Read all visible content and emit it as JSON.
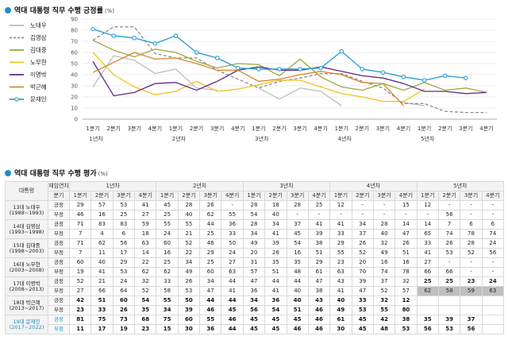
{
  "chart_section_title": "역대 대통령 직무 수행 긍정률",
  "chart_section_unit": "(%)",
  "table_section_title": "역대 대통령 직무 수행 평가",
  "table_section_unit": "(%)",
  "chart_data": {
    "type": "line",
    "title": "역대 대통령 직무 수행 긍정률",
    "ylim": [
      0,
      90
    ],
    "yticks": [
      0,
      10,
      20,
      30,
      40,
      50,
      60,
      70,
      80,
      90
    ],
    "quarter_labels": [
      "1분기",
      "2분기",
      "3분기",
      "4분기",
      "1분기",
      "2분기",
      "3분기",
      "4분기",
      "1분기",
      "2분기",
      "3분기",
      "4분기",
      "1분기",
      "2분기",
      "3분기",
      "4분기",
      "1분기",
      "2분기",
      "3분기",
      "4분기"
    ],
    "year_labels": [
      "1년차",
      "2년차",
      "3년차",
      "4년차",
      "5년차"
    ],
    "grid": true,
    "legend_placement": "left",
    "series": [
      {
        "name": "노태우",
        "color": "#bdbdbd",
        "dash": false,
        "values": [
          29,
          57,
          53,
          41,
          45,
          28,
          26,
          null,
          28,
          18,
          28,
          25,
          12,
          null,
          null,
          15,
          12,
          null,
          null,
          null
        ]
      },
      {
        "name": "김영삼",
        "color": "#8c8c8c",
        "dash": true,
        "values": [
          71,
          83,
          83,
          59,
          55,
          55,
          44,
          36,
          28,
          34,
          37,
          41,
          41,
          34,
          28,
          14,
          14,
          7,
          6,
          6
        ]
      },
      {
        "name": "김대중",
        "color": "#9aa83a",
        "dash": false,
        "values": [
          71,
          62,
          56,
          63,
          60,
          52,
          46,
          50,
          49,
          39,
          54,
          38,
          29,
          26,
          32,
          26,
          33,
          26,
          28,
          24
        ]
      },
      {
        "name": "노무현",
        "color": "#f2c31b",
        "dash": false,
        "values": [
          60,
          40,
          29,
          22,
          25,
          34,
          25,
          27,
          31,
          35,
          35,
          29,
          23,
          20,
          16,
          16,
          27,
          null,
          null,
          null
        ]
      },
      {
        "name": "이명박",
        "color": "#5d2a87",
        "dash": false,
        "values": [
          52,
          21,
          24,
          32,
          33,
          26,
          34,
          44,
          47,
          44,
          44,
          47,
          43,
          39,
          37,
          32,
          25,
          25,
          23,
          24
        ]
      },
      {
        "name": "박근혜",
        "color": "#d9862a",
        "dash": false,
        "values": [
          42,
          51,
          60,
          54,
          55,
          50,
          44,
          44,
          34,
          36,
          40,
          43,
          40,
          33,
          32,
          12,
          null,
          null,
          null,
          null
        ]
      },
      {
        "name": "문재인",
        "color": "#2e9fd6",
        "dash": false,
        "markers": true,
        "values": [
          81,
          75,
          73,
          68,
          75,
          60,
          55,
          46,
          45,
          45,
          45,
          46,
          61,
          45,
          42,
          38,
          35,
          39,
          37,
          null
        ]
      }
    ]
  },
  "table": {
    "head_president": "대통령",
    "head_term": "재임연차",
    "head_quarter": "분기",
    "years": [
      "1년차",
      "2년차",
      "3년차",
      "4년차",
      "5년차"
    ],
    "quarters": [
      "1분기",
      "2분기",
      "3분기",
      "4분기"
    ],
    "label_pos": "긍정",
    "label_neg": "부정",
    "rows": [
      {
        "name": "13대 노태우",
        "term": "(1988~1993)",
        "pos": [
          "29",
          "57",
          "53",
          "41",
          "45",
          "28",
          "26",
          "-",
          "28",
          "18",
          "28",
          "25",
          "12",
          "-",
          "-",
          "15",
          "12",
          "-",
          "-",
          "-"
        ],
        "neg": [
          "46",
          "16",
          "25",
          "27",
          "25",
          "40",
          "62",
          "55",
          "54",
          "40",
          "-",
          "-",
          "-",
          "-",
          "-",
          "-",
          "-",
          "56",
          "-",
          "-"
        ]
      },
      {
        "name": "14대 김영삼",
        "term": "(1993~1998)",
        "pos": [
          "71",
          "83",
          "83",
          "59",
          "55",
          "55",
          "44",
          "36",
          "28",
          "34",
          "37",
          "41",
          "41",
          "34",
          "28",
          "14",
          "14",
          "7",
          "6",
          "6"
        ],
        "neg": [
          "7",
          "4",
          "6",
          "18",
          "24",
          "21",
          "25",
          "33",
          "34",
          "41",
          "45",
          "39",
          "33",
          "37",
          "40",
          "47",
          "65",
          "74",
          "78",
          "74"
        ]
      },
      {
        "name": "15대 김대중",
        "term": "(1998~2003)",
        "pos": [
          "71",
          "62",
          "56",
          "63",
          "60",
          "52",
          "46",
          "50",
          "49",
          "39",
          "54",
          "38",
          "29",
          "26",
          "32",
          "26",
          "33",
          "26",
          "28",
          "24"
        ],
        "neg": [
          "7",
          "11",
          "17",
          "14",
          "16",
          "22",
          "29",
          "24",
          "20",
          "28",
          "16",
          "51",
          "55",
          "52",
          "49",
          "51",
          "41",
          "53",
          "52",
          "56"
        ]
      },
      {
        "name": "16대 노무현",
        "term": "(2003~2008)",
        "pos": [
          "60",
          "40",
          "29",
          "22",
          "25",
          "34",
          "25",
          "27",
          "31",
          "35",
          "35",
          "29",
          "23",
          "20",
          "16",
          "16",
          "27",
          "-",
          "-",
          "-"
        ],
        "neg": [
          "19",
          "41",
          "53",
          "62",
          "62",
          "49",
          "60",
          "63",
          "57",
          "51",
          "48",
          "61",
          "63",
          "70",
          "74",
          "78",
          "66",
          "66",
          "-",
          "-"
        ]
      },
      {
        "name": "17대 이명박",
        "term": "(2008~2013)",
        "pos": [
          "52",
          "21",
          "24",
          "32",
          "33",
          "26",
          "34",
          "44",
          "47",
          "44",
          "44",
          "47",
          "43",
          "39",
          "37",
          "32",
          "25",
          "25",
          "23",
          "24"
        ],
        "neg": [
          "27",
          "66",
          "64",
          "52",
          "58",
          "53",
          "47",
          "41",
          "36",
          "41",
          "40",
          "38",
          "41",
          "47",
          "52",
          "57",
          "62",
          "58",
          "59",
          "63"
        ]
      },
      {
        "name": "18대 박근혜",
        "term": "(2013~2017)",
        "pos": [
          "42",
          "51",
          "60",
          "54",
          "55",
          "50",
          "44",
          "44",
          "34",
          "36",
          "40",
          "43",
          "40",
          "33",
          "32",
          "12",
          "",
          "",
          "",
          ""
        ],
        "neg": [
          "23",
          "33",
          "26",
          "35",
          "34",
          "39",
          "46",
          "45",
          "56",
          "54",
          "51",
          "46",
          "49",
          "53",
          "55",
          "80",
          "",
          "",
          "",
          ""
        ]
      },
      {
        "name": "19대 문재인",
        "term": "(2017~2022)",
        "pos": [
          "81",
          "75",
          "73",
          "68",
          "75",
          "60",
          "55",
          "46",
          "45",
          "45",
          "45",
          "46",
          "61",
          "45",
          "42",
          "38",
          "35",
          "39",
          "37",
          ""
        ],
        "neg": [
          "11",
          "17",
          "19",
          "23",
          "15",
          "30",
          "36",
          "44",
          "45",
          "45",
          "46",
          "46",
          "30",
          "45",
          "48",
          "53",
          "56",
          "53",
          "56",
          ""
        ]
      }
    ]
  }
}
